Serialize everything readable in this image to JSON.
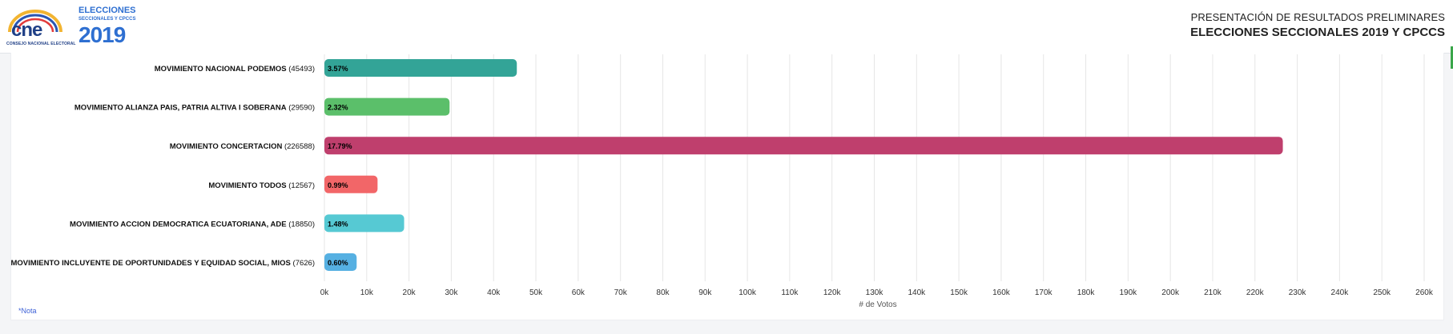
{
  "header": {
    "logo_cne_text": "CNE",
    "logo_cne_caption": "CONSEJO NACIONAL ELECTORAL",
    "logo_elecciones_title": "ELECCIONES",
    "logo_elecciones_sub": "SECCIONALES Y CPCCS",
    "logo_elecciones_year": "2019",
    "title_line1": "PRESENTACIÓN DE RESULTADOS PRELIMINARES",
    "title_line2": "ELECCIONES SECCIONALES 2019 Y CPCCS"
  },
  "footer": {
    "note": "*Nota"
  },
  "colors": {
    "grid": "#e6e6e6",
    "axis_text": "#333333",
    "label_text": "#111111"
  },
  "chart_data": {
    "type": "bar",
    "orientation": "horizontal",
    "categories": [
      "MOVIMIENTO NACIONAL PODEMOS",
      "MOVIMIENTO ALIANZA PAIS, PATRIA ALTIVA I SOBERANA",
      "MOVIMIENTO CONCERTACION",
      "MOVIMIENTO TODOS",
      "MOVIMIENTO ACCION DEMOCRATICA ECUATORIANA, ADE",
      "MOVIMIENTO INCLUYENTE DE OPORTUNIDADES Y EQUIDAD SOCIAL, MIOS"
    ],
    "category_counts": [
      "(45493)",
      "(29590)",
      "(226588)",
      "(12567)",
      "(18850)",
      "(7626)"
    ],
    "values": [
      45493,
      29590,
      226588,
      12567,
      18850,
      7626
    ],
    "data_labels": [
      "3.57%",
      "2.32%",
      "17.79%",
      "0.99%",
      "1.48%",
      "0.60%"
    ],
    "bar_colors": [
      "#33a497",
      "#5bbf6a",
      "#bf3f6d",
      "#f26668",
      "#56c9d3",
      "#56b0e2"
    ],
    "xlabel": "# de Votos",
    "xlim": [
      0,
      260000
    ],
    "xticks": [
      0,
      10000,
      20000,
      30000,
      40000,
      50000,
      60000,
      70000,
      80000,
      90000,
      100000,
      110000,
      120000,
      130000,
      140000,
      150000,
      160000,
      170000,
      180000,
      190000,
      200000,
      210000,
      220000,
      230000,
      240000,
      250000,
      260000
    ],
    "xtick_labels": [
      "0k",
      "10k",
      "20k",
      "30k",
      "40k",
      "50k",
      "60k",
      "70k",
      "80k",
      "90k",
      "100k",
      "110k",
      "120k",
      "130k",
      "140k",
      "150k",
      "160k",
      "170k",
      "180k",
      "190k",
      "200k",
      "210k",
      "220k",
      "230k",
      "240k",
      "250k",
      "260k"
    ],
    "grid": true
  }
}
